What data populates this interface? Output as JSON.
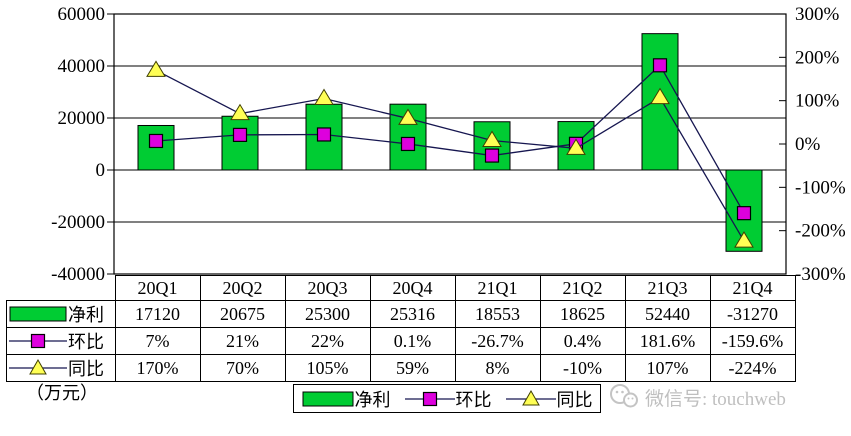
{
  "unit_label": "（万元）",
  "watermark": {
    "text": "微信号: touchweb",
    "color": "#bfbfbf"
  },
  "colors": {
    "bar_fill": "#00cc33",
    "bar_border": "#000000",
    "huanbi_marker": "#dd00dd",
    "huanbi_marker_border": "#000000",
    "tongbi_marker": "#ffff55",
    "tongbi_marker_border": "#404000",
    "line": "#161650",
    "grid": "#000000",
    "text": "#000000"
  },
  "left_axis": {
    "min": -40000,
    "max": 60000,
    "ticks": [
      {
        "label": "60000",
        "value": 60000
      },
      {
        "label": "40000",
        "value": 40000
      },
      {
        "label": "20000",
        "value": 20000
      },
      {
        "label": "0",
        "value": 0
      },
      {
        "label": "-20000",
        "value": -20000
      },
      {
        "label": "-40000",
        "value": -40000
      }
    ]
  },
  "right_axis": {
    "min": -300,
    "max": 300,
    "ticks": [
      {
        "label": "300%",
        "value": 300
      },
      {
        "label": "200%",
        "value": 200
      },
      {
        "label": "100%",
        "value": 100
      },
      {
        "label": "0%",
        "value": 0
      },
      {
        "label": "-100%",
        "value": -100
      },
      {
        "label": "-200%",
        "value": -200
      },
      {
        "label": "-300%",
        "value": -300
      }
    ]
  },
  "chart_data": {
    "type": "bar",
    "subtype": "bar+line-combo",
    "categories": [
      "20Q1",
      "20Q2",
      "20Q3",
      "20Q4",
      "21Q1",
      "21Q2",
      "21Q3",
      "21Q4"
    ],
    "series": [
      {
        "name": "净利",
        "type": "bar",
        "axis": "left",
        "values": [
          17120,
          20675,
          25300,
          25316,
          18553,
          18625,
          52440,
          -31270
        ]
      },
      {
        "name": "环比",
        "type": "line",
        "marker": "square",
        "axis": "right",
        "values": [
          7,
          21,
          22,
          0.1,
          -26.7,
          0.4,
          181.6,
          -159.6
        ]
      },
      {
        "name": "同比",
        "type": "line",
        "marker": "triangle",
        "axis": "right",
        "values": [
          170,
          70,
          105,
          59,
          8,
          -10,
          107,
          -224
        ]
      }
    ],
    "title": "",
    "xlabel": "",
    "ylabel": "（万元）",
    "left_ylim": [
      -40000,
      60000
    ],
    "right_ylim": [
      -300,
      300
    ],
    "grid": true,
    "legend_position": "bottom"
  },
  "table": {
    "columns": [
      "20Q1",
      "20Q2",
      "20Q3",
      "20Q4",
      "21Q1",
      "21Q2",
      "21Q3",
      "21Q4"
    ],
    "rows": [
      {
        "label": "净利",
        "marker": "bar",
        "values": [
          "17120",
          "20675",
          "25300",
          "25316",
          "18553",
          "18625",
          "52440",
          "-31270"
        ]
      },
      {
        "label": "环比",
        "marker": "square",
        "values": [
          "7%",
          "21%",
          "22%",
          "0.1%",
          "-26.7%",
          "0.4%",
          "181.6%",
          "-159.6%"
        ]
      },
      {
        "label": "同比",
        "marker": "triangle",
        "values": [
          "170%",
          "70%",
          "105%",
          "59%",
          "8%",
          "-10%",
          "107%",
          "-224%"
        ]
      }
    ]
  },
  "legend": {
    "items": [
      {
        "label": "净利",
        "marker": "bar"
      },
      {
        "label": "环比",
        "marker": "square"
      },
      {
        "label": "同比",
        "marker": "triangle"
      }
    ]
  }
}
